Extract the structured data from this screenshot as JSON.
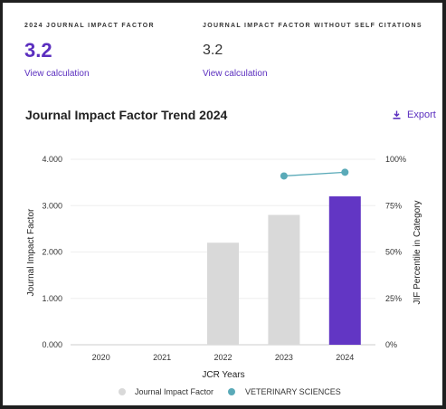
{
  "metrics": {
    "jif": {
      "label": "2024 JOURNAL IMPACT FACTOR",
      "value": "3.2",
      "link": "View calculation"
    },
    "jif_no_self": {
      "label": "JOURNAL IMPACT FACTOR WITHOUT SELF CITATIONS",
      "value": "3.2",
      "link": "View calculation"
    }
  },
  "trend": {
    "title": "Journal Impact Factor Trend 2024",
    "export_label": "Export",
    "export_icon": "download-icon"
  },
  "colors": {
    "accent": "#5b2fbf",
    "bar_default": "#d9d9d9",
    "bar_highlight": "#6236c4",
    "percentile": "#5aaab8",
    "gridline": "#eeeeee"
  },
  "chart_data": {
    "type": "bar",
    "categories": [
      "2020",
      "2021",
      "2022",
      "2023",
      "2024"
    ],
    "series": [
      {
        "name": "Journal Impact Factor",
        "axis": "left",
        "values": [
          null,
          null,
          2.2,
          2.8,
          3.2
        ]
      },
      {
        "name": "VETERINARY SCIENCES",
        "type": "line",
        "axis": "right",
        "values": [
          null,
          null,
          null,
          91,
          93
        ]
      }
    ],
    "highlight_category": "2024",
    "xlabel": "JCR Years",
    "ylabel": "Journal Impact Factor",
    "ylabel_right": "JIF Percentile in Category",
    "ylim": [
      0,
      4
    ],
    "ylim_right": [
      0,
      100
    ],
    "yticks": [
      "0.000",
      "1.000",
      "2.000",
      "3.000",
      "4.000"
    ],
    "yticks_right": [
      "0%",
      "25%",
      "50%",
      "75%",
      "100%"
    ],
    "grid": true,
    "legend_position": "bottom"
  }
}
